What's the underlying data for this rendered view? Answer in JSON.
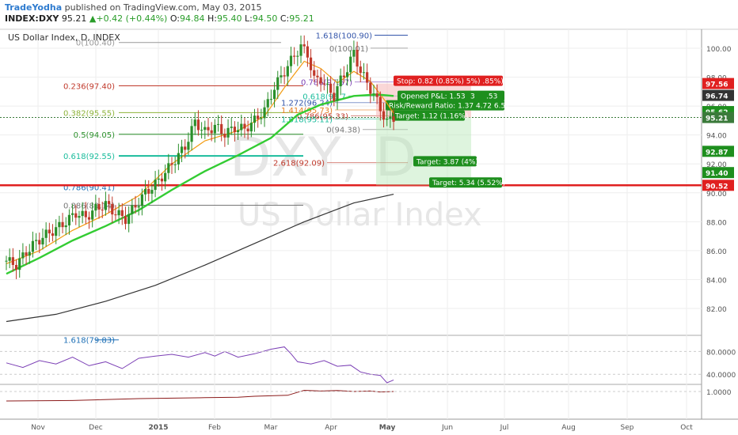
{
  "header": {
    "user": "TradeYodha",
    "published": "published on TradingView.com, May 03, 2015",
    "symbol": "INDEX:DXY",
    "last": "95.21",
    "arrow": "▲",
    "change": "+0.42 (+0.44%)",
    "o_label": "O:",
    "o_val": "94.84",
    "h_label": "H:",
    "h_val": "95.40",
    "l_label": "L:",
    "l_val": "94.50",
    "c_label": "C:",
    "c_val": "95.21",
    "chart_title": "US Dollar Index, D, INDEX"
  },
  "colors": {
    "candle_up": "#2a8f2a",
    "candle_down": "#c0392b",
    "ma_fast": "#f39c12",
    "ma_mid": "#33cc33",
    "ma_slow": "#333333",
    "oscillator": "#7b3fb5",
    "ratio_line": "#8b1a1a",
    "support_line": "#e02020",
    "badge_green": "#1e8f1e",
    "badge_red": "#e02020",
    "price_badge": "#3a7a3a"
  },
  "chart_data": {
    "type": "candlestick",
    "watermark_symbol": "DXY, D",
    "watermark_name": "US Dollar Index",
    "y_ticks": [
      "100.00",
      "98.00",
      "96.00",
      "94.00",
      "92.00",
      "90.00",
      "88.00",
      "86.00",
      "84.00",
      "82.00"
    ],
    "x_ticks": [
      "Nov",
      "Dec",
      "2015",
      "Feb",
      "Mar",
      "Apr",
      "May",
      "Jun",
      "Jul",
      "Aug",
      "Sep",
      "Oct"
    ],
    "price_badges": [
      {
        "text": "97.56",
        "color": "#e02020"
      },
      {
        "text": "96.74",
        "color": "#333333"
      },
      {
        "text": "95.62",
        "color": "#1e8f1e"
      },
      {
        "text": "95.21",
        "color": "#3a7a3a"
      },
      {
        "text": "92.87",
        "color": "#1e8f1e"
      },
      {
        "text": "91.40",
        "color": "#1e8f1e"
      },
      {
        "text": "90.52",
        "color": "#e02020"
      }
    ],
    "fib_retracement": [
      {
        "label": "0(100.40)",
        "value": 100.4
      },
      {
        "label": "0.236(97.40)",
        "value": 97.4
      },
      {
        "label": "0.382(95.55)",
        "value": 95.55
      },
      {
        "label": "0.5(94.05)",
        "value": 94.05
      },
      {
        "label": "0.618(92.55)",
        "value": 92.55
      },
      {
        "label": "0.786(90.41)",
        "value": 90.41
      },
      {
        "label": "0.886(89.14)",
        "value": 89.14
      },
      {
        "label": "1.618(79.83)",
        "value": 79.83
      }
    ],
    "fib_extension": [
      {
        "label": "1.618(100.90)",
        "value": 100.9
      },
      {
        "label": "0(100.01)",
        "value": 100.01
      },
      {
        "label": "0.786(97.67)",
        "value": 97.67
      },
      {
        "label": "0.618(96.7",
        "value": 96.7
      },
      {
        "label": "1.272(96.24)",
        "value": 96.24
      },
      {
        "label": "1.414(95.73)",
        "value": 95.73
      },
      {
        "label": "0.786(95.33)",
        "value": 95.33
      },
      {
        "label": "1.618(95.11)",
        "value": 95.11
      },
      {
        "label": "0(94.38)",
        "value": 94.38
      },
      {
        "label": "2.618(92.09)",
        "value": 92.09
      }
    ],
    "trade_box": {
      "stop": "Stop: 0.82 (0.85%) 5%) .85%)",
      "opened_pl": "Opened P&L: 1.53",
      "risk_reward": "Risk/Reward Ratio: 1.37 4.72 6.51",
      "extra_values": [
        "3",
        ".53"
      ],
      "targets": [
        "Target: 1.12 (1.16%)",
        "Target: 3.87 (4%)",
        "Target: 5.34 (5.52%)"
      ]
    },
    "support_level": 90.52,
    "current_price": 95.21,
    "series": [
      {
        "name": "Price",
        "points": [
          [
            0,
            85.3
          ],
          [
            3,
            85.0
          ],
          [
            6,
            85.9
          ],
          [
            9,
            86.6
          ],
          [
            12,
            87.1
          ],
          [
            15,
            87.5
          ],
          [
            18,
            88.0
          ],
          [
            21,
            88.6
          ],
          [
            24,
            88.3
          ],
          [
            27,
            88.9
          ],
          [
            30,
            89.2
          ],
          [
            33,
            88.6
          ],
          [
            36,
            88.2
          ],
          [
            39,
            89.1
          ],
          [
            42,
            90.0
          ],
          [
            45,
            90.6
          ],
          [
            48,
            91.4
          ],
          [
            51,
            92.3
          ],
          [
            54,
            93.2
          ],
          [
            57,
            94.9
          ],
          [
            60,
            94.2
          ],
          [
            63,
            94.6
          ],
          [
            66,
            94.1
          ],
          [
            69,
            94.5
          ],
          [
            72,
            94.4
          ],
          [
            75,
            95.0
          ],
          [
            78,
            95.7
          ],
          [
            81,
            97.3
          ],
          [
            84,
            98.4
          ],
          [
            87,
            99.5
          ],
          [
            89,
            100.1
          ],
          [
            91,
            99.6
          ],
          [
            93,
            97.8
          ],
          [
            95,
            97.9
          ],
          [
            97,
            97.2
          ],
          [
            99,
            96.7
          ],
          [
            101,
            97.8
          ],
          [
            103,
            98.6
          ],
          [
            105,
            99.7
          ],
          [
            107,
            98.4
          ],
          [
            109,
            97.6
          ],
          [
            111,
            96.8
          ],
          [
            113,
            95.8
          ],
          [
            115,
            94.9
          ],
          [
            117,
            95.2
          ]
        ]
      },
      {
        "name": "MA fast",
        "points": [
          [
            0,
            85.1
          ],
          [
            10,
            86.0
          ],
          [
            20,
            87.4
          ],
          [
            30,
            88.5
          ],
          [
            40,
            89.8
          ],
          [
            50,
            92.0
          ],
          [
            60,
            93.6
          ],
          [
            70,
            94.3
          ],
          [
            78,
            95.3
          ],
          [
            85,
            97.6
          ],
          [
            90,
            99.1
          ],
          [
            95,
            98.6
          ],
          [
            100,
            97.6
          ],
          [
            105,
            98.4
          ],
          [
            110,
            97.7
          ],
          [
            115,
            96.2
          ],
          [
            117,
            95.5
          ]
        ]
      },
      {
        "name": "MA mid",
        "points": [
          [
            0,
            84.4
          ],
          [
            10,
            85.5
          ],
          [
            20,
            86.7
          ],
          [
            30,
            87.7
          ],
          [
            40,
            88.8
          ],
          [
            50,
            90.2
          ],
          [
            60,
            91.5
          ],
          [
            70,
            92.6
          ],
          [
            80,
            93.8
          ],
          [
            88,
            95.4
          ],
          [
            95,
            96.1
          ],
          [
            105,
            96.7
          ],
          [
            112,
            96.8
          ],
          [
            117,
            96.7
          ]
        ]
      },
      {
        "name": "MA slow",
        "points": [
          [
            0,
            81.1
          ],
          [
            15,
            81.6
          ],
          [
            30,
            82.5
          ],
          [
            45,
            83.6
          ],
          [
            60,
            85.0
          ],
          [
            75,
            86.5
          ],
          [
            90,
            88.0
          ],
          [
            105,
            89.3
          ],
          [
            117,
            89.9
          ]
        ]
      }
    ],
    "oscillator": {
      "ticks": [
        "80.0000",
        "40.0000"
      ],
      "values": [
        [
          0,
          60
        ],
        [
          5,
          52
        ],
        [
          10,
          64
        ],
        [
          15,
          58
        ],
        [
          20,
          70
        ],
        [
          25,
          55
        ],
        [
          30,
          62
        ],
        [
          35,
          50
        ],
        [
          40,
          68
        ],
        [
          45,
          72
        ],
        [
          50,
          75
        ],
        [
          55,
          70
        ],
        [
          60,
          78
        ],
        [
          63,
          72
        ],
        [
          66,
          80
        ],
        [
          70,
          70
        ],
        [
          75,
          76
        ],
        [
          80,
          84
        ],
        [
          84,
          88
        ],
        [
          86,
          76
        ],
        [
          88,
          62
        ],
        [
          92,
          58
        ],
        [
          96,
          64
        ],
        [
          100,
          54
        ],
        [
          104,
          56
        ],
        [
          107,
          44
        ],
        [
          110,
          40
        ],
        [
          113,
          38
        ],
        [
          115,
          25
        ],
        [
          117,
          30
        ]
      ]
    },
    "ratio": {
      "ticks": [
        "1.0000"
      ],
      "values": [
        [
          0,
          0.6
        ],
        [
          20,
          0.62
        ],
        [
          40,
          0.7
        ],
        [
          60,
          0.74
        ],
        [
          70,
          0.76
        ],
        [
          75,
          0.8
        ],
        [
          85,
          0.84
        ],
        [
          90,
          1.05
        ],
        [
          95,
          1.02
        ],
        [
          100,
          1.04
        ],
        [
          105,
          1.0
        ],
        [
          110,
          1.02
        ],
        [
          113,
          0.98
        ],
        [
          117,
          1.0
        ]
      ]
    }
  }
}
